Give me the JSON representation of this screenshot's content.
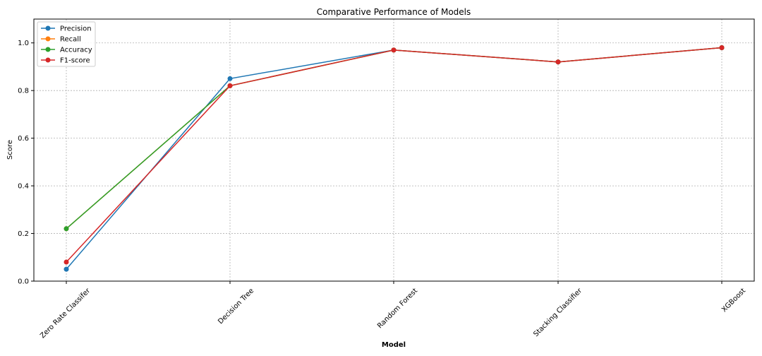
{
  "chart_data": {
    "type": "line",
    "title": "Comparative Performance of Models",
    "xlabel": "Model",
    "ylabel": "Score",
    "categories": [
      "Zero Rate Classifer",
      "Decision Tree",
      "Random Forest",
      "Stacking Classifier",
      "XGBoost"
    ],
    "ylim": [
      0,
      1.1
    ],
    "yticks": [
      0.0,
      0.2,
      0.4,
      0.6,
      0.8,
      1.0
    ],
    "ytick_labels": [
      "0.0",
      "0.2",
      "0.4",
      "0.6",
      "0.8",
      "1.0"
    ],
    "grid": true,
    "legend_position": "top-left",
    "series": [
      {
        "name": "Precision",
        "color": "#1f77b4",
        "values": [
          0.05,
          0.85,
          0.97,
          0.92,
          0.98
        ]
      },
      {
        "name": "Recall",
        "color": "#ff7f0e",
        "values": [
          0.22,
          0.82,
          0.97,
          0.92,
          0.98
        ]
      },
      {
        "name": "Accuracy",
        "color": "#2ca02c",
        "values": [
          0.22,
          0.82,
          0.97,
          0.92,
          0.98
        ]
      },
      {
        "name": "F1-score",
        "color": "#d62728",
        "values": [
          0.08,
          0.82,
          0.97,
          0.92,
          0.98
        ]
      }
    ]
  }
}
